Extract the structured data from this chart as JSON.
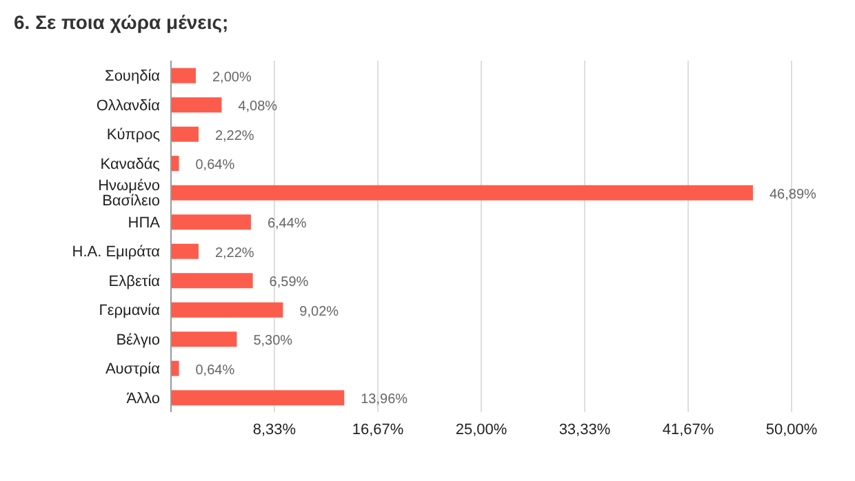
{
  "chart_data": {
    "type": "bar",
    "orientation": "horizontal",
    "title": "6. Σε ποια χώρα μένεις;",
    "categories": [
      "Σουηδία",
      "Ολλανδία",
      "Κύπρος",
      "Καναδάς",
      "Ηνωμένο Βασίλειο",
      "ΗΠΑ",
      "Η.Α. Εμιράτα",
      "Ελβετία",
      "Γερμανία",
      "Βέλγιο",
      "Αυστρία",
      "Άλλο"
    ],
    "values": [
      2.0,
      4.08,
      2.22,
      0.64,
      46.89,
      6.44,
      2.22,
      6.59,
      9.02,
      5.3,
      0.64,
      13.96
    ],
    "value_labels": [
      "2,00%",
      "4,08%",
      "2,22%",
      "0,64%",
      "46,89%",
      "6,44%",
      "2,22%",
      "6,59%",
      "9,02%",
      "5,30%",
      "0,64%",
      "13,96%"
    ],
    "color": "#fc5c4c",
    "xlim": [
      0,
      50
    ],
    "xticks": [
      {
        "value": 8.33,
        "label": "8,33%"
      },
      {
        "value": 16.67,
        "label": "16,67%"
      },
      {
        "value": 25,
        "label": "25,00%"
      },
      {
        "value": 33.33,
        "label": "33,33%"
      },
      {
        "value": 41.67,
        "label": "41,67%"
      },
      {
        "value": 50,
        "label": "50,00%"
      }
    ],
    "grid": "x"
  }
}
